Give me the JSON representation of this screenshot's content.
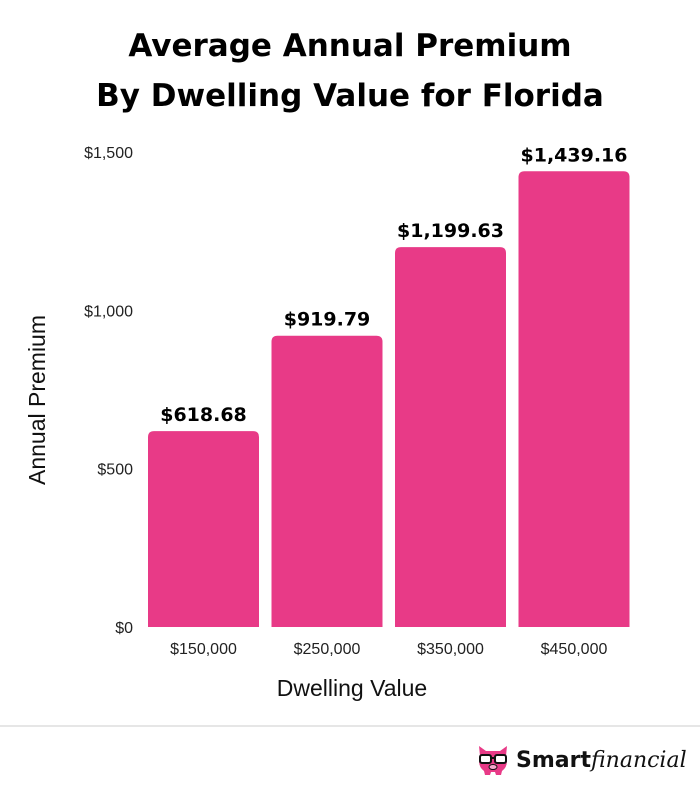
{
  "chart_data": {
    "type": "bar",
    "title": [
      "Average Annual Premium",
      "By Dwelling Value for Florida"
    ],
    "xlabel": "Dwelling Value",
    "ylabel": "Annual Premium",
    "categories": [
      "$150,000",
      "$250,000",
      "$350,000",
      "$450,000"
    ],
    "values": [
      618.68,
      919.79,
      1199.63,
      1439.16
    ],
    "data_labels": [
      "$618.68",
      "$919.79",
      "$1,199.63",
      "$1,439.16"
    ],
    "ylim": [
      0,
      1500
    ],
    "yticks": [
      0,
      500,
      1000,
      1500
    ],
    "ytick_labels": [
      "$0",
      "$500",
      "$1,000",
      "$1,500"
    ],
    "grid": false,
    "bar_color": "#E83A87"
  },
  "brand": {
    "smart": "Smart",
    "financial": "financial",
    "logo_color": "#E83A87"
  }
}
